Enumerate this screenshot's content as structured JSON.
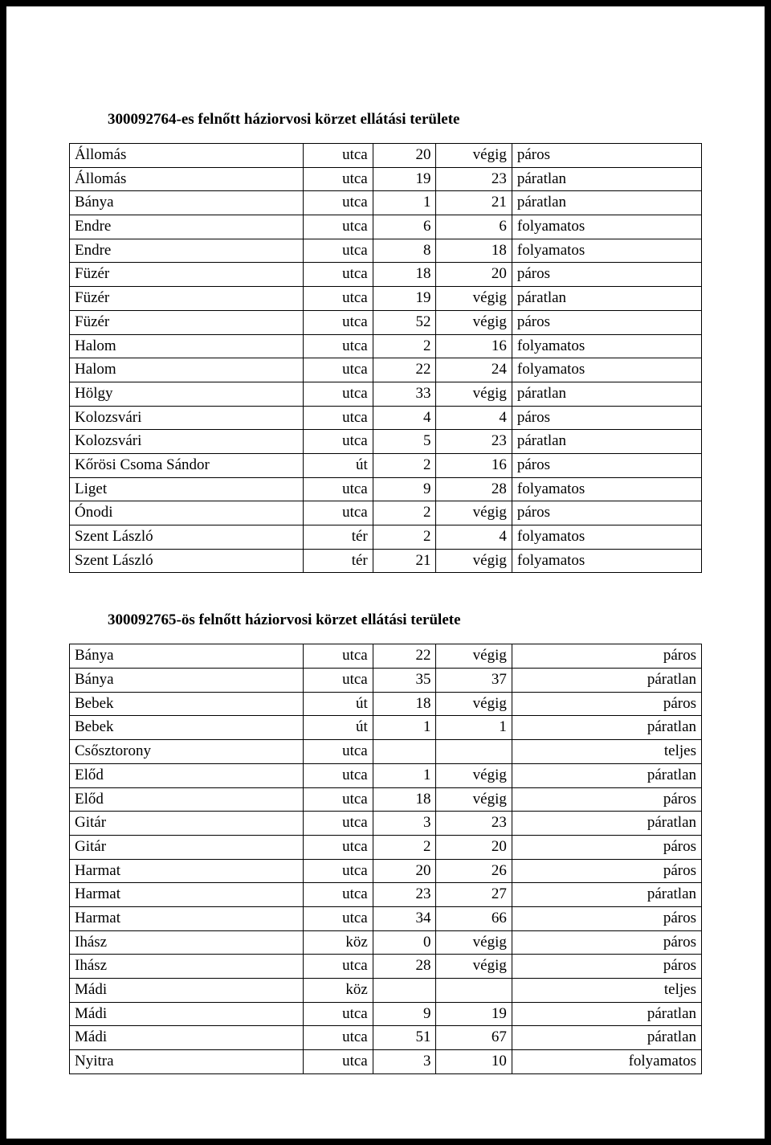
{
  "section1": {
    "title": "300092764-es felnőtt háziorvosi körzet ellátási területe",
    "rows": [
      {
        "street": "Állomás",
        "type": "utca",
        "from": "20",
        "to": "végig",
        "parity": "páros"
      },
      {
        "street": "Állomás",
        "type": "utca",
        "from": "19",
        "to": "23",
        "parity": "páratlan"
      },
      {
        "street": "Bánya",
        "type": "utca",
        "from": "1",
        "to": "21",
        "parity": "páratlan"
      },
      {
        "street": "Endre",
        "type": "utca",
        "from": "6",
        "to": "6",
        "parity": "folyamatos"
      },
      {
        "street": "Endre",
        "type": "utca",
        "from": "8",
        "to": "18",
        "parity": "folyamatos"
      },
      {
        "street": "Füzér",
        "type": "utca",
        "from": "18",
        "to": "20",
        "parity": "páros"
      },
      {
        "street": "Füzér",
        "type": "utca",
        "from": "19",
        "to": "végig",
        "parity": "páratlan"
      },
      {
        "street": "Füzér",
        "type": "utca",
        "from": "52",
        "to": "végig",
        "parity": "páros"
      },
      {
        "street": "Halom",
        "type": "utca",
        "from": "2",
        "to": "16",
        "parity": "folyamatos"
      },
      {
        "street": "Halom",
        "type": "utca",
        "from": "22",
        "to": "24",
        "parity": "folyamatos"
      },
      {
        "street": "Hölgy",
        "type": "utca",
        "from": "33",
        "to": "végig",
        "parity": "páratlan"
      },
      {
        "street": "Kolozsvári",
        "type": "utca",
        "from": "4",
        "to": "4",
        "parity": "páros"
      },
      {
        "street": "Kolozsvári",
        "type": "utca",
        "from": "5",
        "to": "23",
        "parity": "páratlan"
      },
      {
        "street": "Kőrösi Csoma Sándor",
        "type": "út",
        "from": "2",
        "to": "16",
        "parity": "páros"
      },
      {
        "street": "Liget",
        "type": "utca",
        "from": "9",
        "to": "28",
        "parity": "folyamatos"
      },
      {
        "street": "Ónodi",
        "type": "utca",
        "from": "2",
        "to": "végig",
        "parity": "páros"
      },
      {
        "street": "Szent László",
        "type": "tér",
        "from": "2",
        "to": "4",
        "parity": "folyamatos"
      },
      {
        "street": "Szent László",
        "type": "tér",
        "from": "21",
        "to": "végig",
        "parity": "folyamatos"
      }
    ]
  },
  "section2": {
    "title": "300092765-ös felnőtt háziorvosi körzet ellátási területe",
    "rows": [
      {
        "street": "Bánya",
        "type": "utca",
        "from": "22",
        "to": "végig",
        "parity": "páros"
      },
      {
        "street": "Bánya",
        "type": "utca",
        "from": "35",
        "to": "37",
        "parity": "páratlan"
      },
      {
        "street": "Bebek",
        "type": "út",
        "from": "18",
        "to": "végig",
        "parity": "páros"
      },
      {
        "street": "Bebek",
        "type": "út",
        "from": "1",
        "to": "1",
        "parity": "páratlan"
      },
      {
        "street": "Csősztorony",
        "type": "utca",
        "from": "",
        "to": "",
        "parity": "teljes"
      },
      {
        "street": "Előd",
        "type": "utca",
        "from": "1",
        "to": "végig",
        "parity": "páratlan"
      },
      {
        "street": "Előd",
        "type": "utca",
        "from": "18",
        "to": "végig",
        "parity": "páros"
      },
      {
        "street": "Gitár",
        "type": "utca",
        "from": "3",
        "to": "23",
        "parity": "páratlan"
      },
      {
        "street": "Gitár",
        "type": "utca",
        "from": "2",
        "to": "20",
        "parity": "páros"
      },
      {
        "street": "Harmat",
        "type": "utca",
        "from": "20",
        "to": "26",
        "parity": "páros"
      },
      {
        "street": "Harmat",
        "type": "utca",
        "from": "23",
        "to": "27",
        "parity": "páratlan"
      },
      {
        "street": "Harmat",
        "type": "utca",
        "from": "34",
        "to": "66",
        "parity": "páros"
      },
      {
        "street": "Ihász",
        "type": "köz",
        "from": "0",
        "to": "végig",
        "parity": "páros"
      },
      {
        "street": "Ihász",
        "type": "utca",
        "from": "28",
        "to": "végig",
        "parity": "páros"
      },
      {
        "street": "Mádi",
        "type": "köz",
        "from": "",
        "to": "",
        "parity": "teljes"
      },
      {
        "street": "Mádi",
        "type": "utca",
        "from": "9",
        "to": "19",
        "parity": "páratlan"
      },
      {
        "street": "Mádi",
        "type": "utca",
        "from": "51",
        "to": "67",
        "parity": "páratlan"
      },
      {
        "street": "Nyitra",
        "type": "utca",
        "from": "3",
        "to": "10",
        "parity": "folyamatos"
      }
    ]
  }
}
